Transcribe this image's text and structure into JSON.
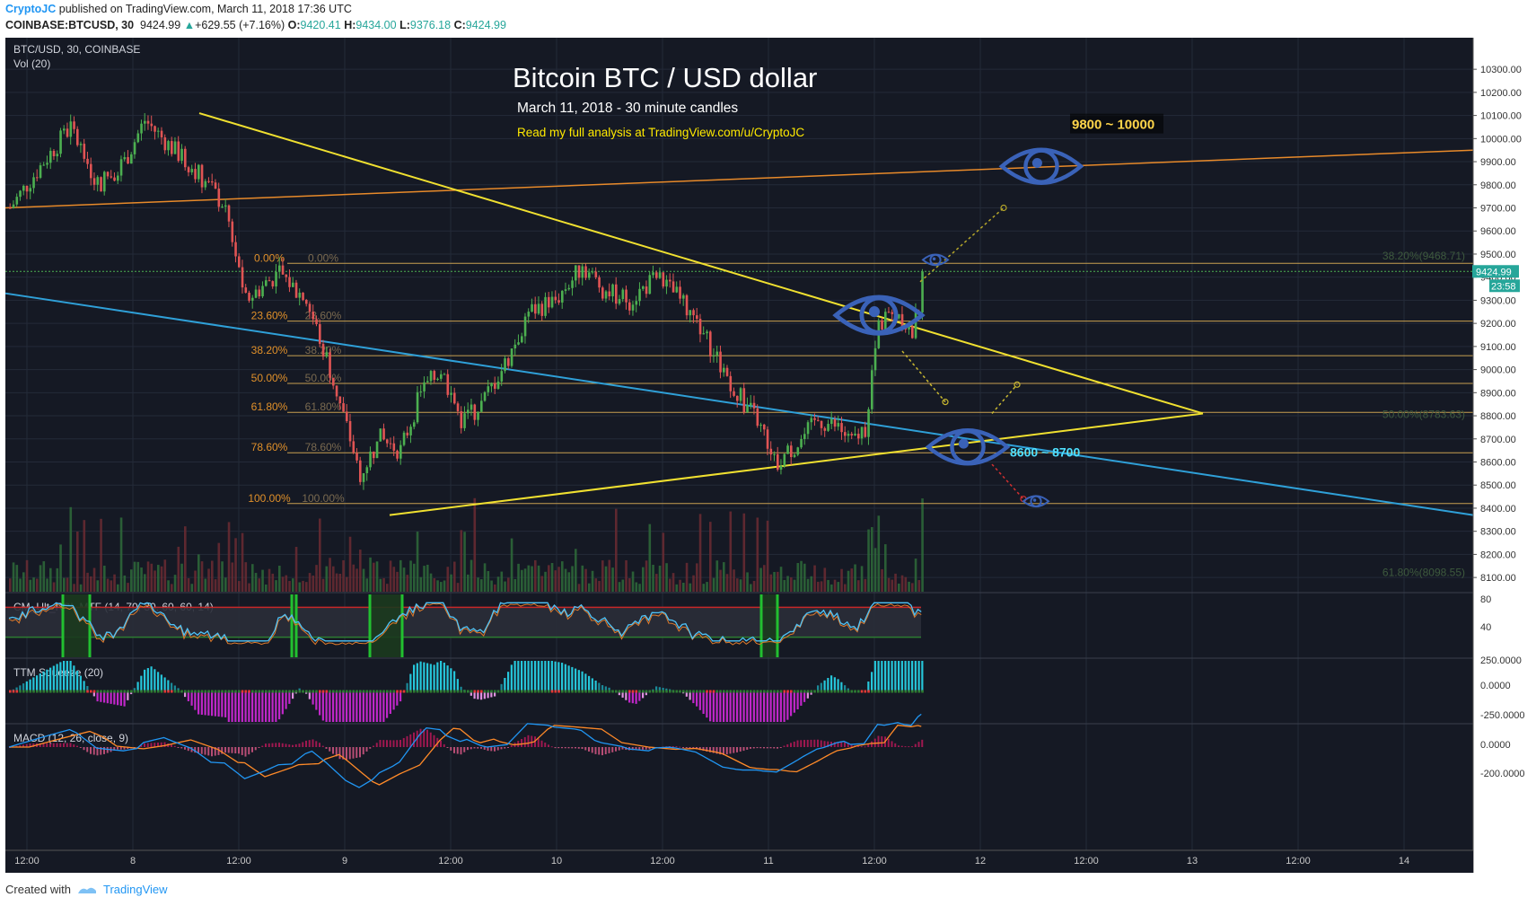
{
  "header": {
    "author": "CryptoJC",
    "published_text": "published on TradingView.com, March 11, 2018 17:36 UTC",
    "symbol_line": "COINBASE:BTCUSD, 30",
    "last": "9424.99",
    "change": "+629.55 (+7.16%)",
    "o_label": "O:",
    "open": "9420.41",
    "h_label": "H:",
    "high": "9434.00",
    "l_label": "L:",
    "low": "9376.18",
    "c_label": "C:",
    "close": "9424.99"
  },
  "footer": {
    "created_with": "Created with",
    "brand": "TradingView"
  },
  "chart_data": {
    "type": "candlestick",
    "symbol_label": "BTC/USD, 30, COINBASE",
    "volume_label": "Vol (20)",
    "title": "Bitcoin BTC / USD dollar",
    "subtitle": "March 11, 2018 - 30 minute candles",
    "promo": "Read my full analysis at TradingView.com/u/CryptoJC",
    "ylim": [
      8050,
      10320
    ],
    "y_ticks": [
      "10300.00",
      "10200.00",
      "10100.00",
      "10000.00",
      "9900.00",
      "9800.00",
      "9700.00",
      "9600.00",
      "9500.00",
      "9400.00",
      "9300.00",
      "9200.00",
      "9100.00",
      "9000.00",
      "8900.00",
      "8800.00",
      "8700.00",
      "8600.00",
      "8500.00",
      "8400.00",
      "8300.00",
      "8200.00",
      "8100.00"
    ],
    "x_ticks": [
      "12:00",
      "8",
      "12:00",
      "9",
      "12:00",
      "10",
      "12:00",
      "11",
      "12:00",
      "12",
      "12:00",
      "13",
      "12:00",
      "14"
    ],
    "last_price_tag": "9424.99",
    "countdown_tag": "23:58",
    "price_path": [
      {
        "t": 0,
        "p": 9700
      },
      {
        "t": 5,
        "p": 9900
      },
      {
        "t": 9,
        "p": 10050
      },
      {
        "t": 13,
        "p": 9800
      },
      {
        "t": 17,
        "p": 9900
      },
      {
        "t": 20,
        "p": 10080
      },
      {
        "t": 24,
        "p": 9960
      },
      {
        "t": 28,
        "p": 9850
      },
      {
        "t": 32,
        "p": 9700
      },
      {
        "t": 35,
        "p": 9300
      },
      {
        "t": 40,
        "p": 9420
      },
      {
        "t": 44,
        "p": 9300
      },
      {
        "t": 47,
        "p": 9050
      },
      {
        "t": 50,
        "p": 8750
      },
      {
        "t": 52,
        "p": 8550
      },
      {
        "t": 55,
        "p": 8700
      },
      {
        "t": 58,
        "p": 8650
      },
      {
        "t": 61,
        "p": 8900
      },
      {
        "t": 64,
        "p": 9000
      },
      {
        "t": 67,
        "p": 8780
      },
      {
        "t": 70,
        "p": 8850
      },
      {
        "t": 74,
        "p": 9050
      },
      {
        "t": 77,
        "p": 9250
      },
      {
        "t": 81,
        "p": 9300
      },
      {
        "t": 85,
        "p": 9450
      },
      {
        "t": 88,
        "p": 9350
      },
      {
        "t": 92,
        "p": 9300
      },
      {
        "t": 96,
        "p": 9400
      },
      {
        "t": 99,
        "p": 9320
      },
      {
        "t": 102,
        "p": 9200
      },
      {
        "t": 105,
        "p": 9050
      },
      {
        "t": 108,
        "p": 8900
      },
      {
        "t": 111,
        "p": 8780
      },
      {
        "t": 114,
        "p": 8600
      },
      {
        "t": 117,
        "p": 8680
      },
      {
        "t": 120,
        "p": 8780
      },
      {
        "t": 123,
        "p": 8750
      },
      {
        "t": 125,
        "p": 8680
      },
      {
        "t": 127,
        "p": 8750
      },
      {
        "t": 129,
        "p": 9200
      },
      {
        "t": 132,
        "p": 9250
      },
      {
        "t": 134,
        "p": 9150
      },
      {
        "t": 136,
        "p": 9424.99
      }
    ],
    "fib_left": [
      {
        "pct": "0.00%",
        "price": 9460
      },
      {
        "pct": "23.60%",
        "price": 9210
      },
      {
        "pct": "38.20%",
        "price": 9060
      },
      {
        "pct": "50.00%",
        "price": 8940
      },
      {
        "pct": "61.80%",
        "price": 8815
      },
      {
        "pct": "78.60%",
        "price": 8640
      },
      {
        "pct": "100.00%",
        "price": 8420
      }
    ],
    "fib_right": [
      {
        "label": "38.20%(9468.71)",
        "price": 9468.71
      },
      {
        "label": "50.00%(8783.63)",
        "price": 8783.63
      },
      {
        "label": "61.80%(8098.55)",
        "price": 8098.55
      }
    ],
    "targets": [
      {
        "text": "9800 ~ 10000",
        "price": 9890
      },
      {
        "text": "8600 ~ 8700",
        "price": 8650
      }
    ],
    "indicators": [
      {
        "name": "CM_Ult_RSI_MTF (14, 70, 30, 60, 60, 14)",
        "ticks": [
          "80",
          "40"
        ],
        "upper": 70,
        "lower": 30
      },
      {
        "name": "TTM Squeeze (20)",
        "ticks": [
          "250.0000",
          "0.0000",
          "-250.0000"
        ]
      },
      {
        "name": "MACD (12, 26, close, 9)",
        "ticks": [
          "0.0000",
          "-200.0000"
        ]
      }
    ],
    "colors": {
      "background": "#151924",
      "grid": "#242a38",
      "up": "#4caf50",
      "down": "#e05454",
      "trendline": "#f0e030",
      "upper_channel": "#e88a2a",
      "blue_line": "#2fa0d8",
      "fib": "#c8a050",
      "eye": "#3a62b8",
      "target_text": "#ffd54a",
      "target_text2": "#4fe0ff"
    },
    "grid": true
  }
}
